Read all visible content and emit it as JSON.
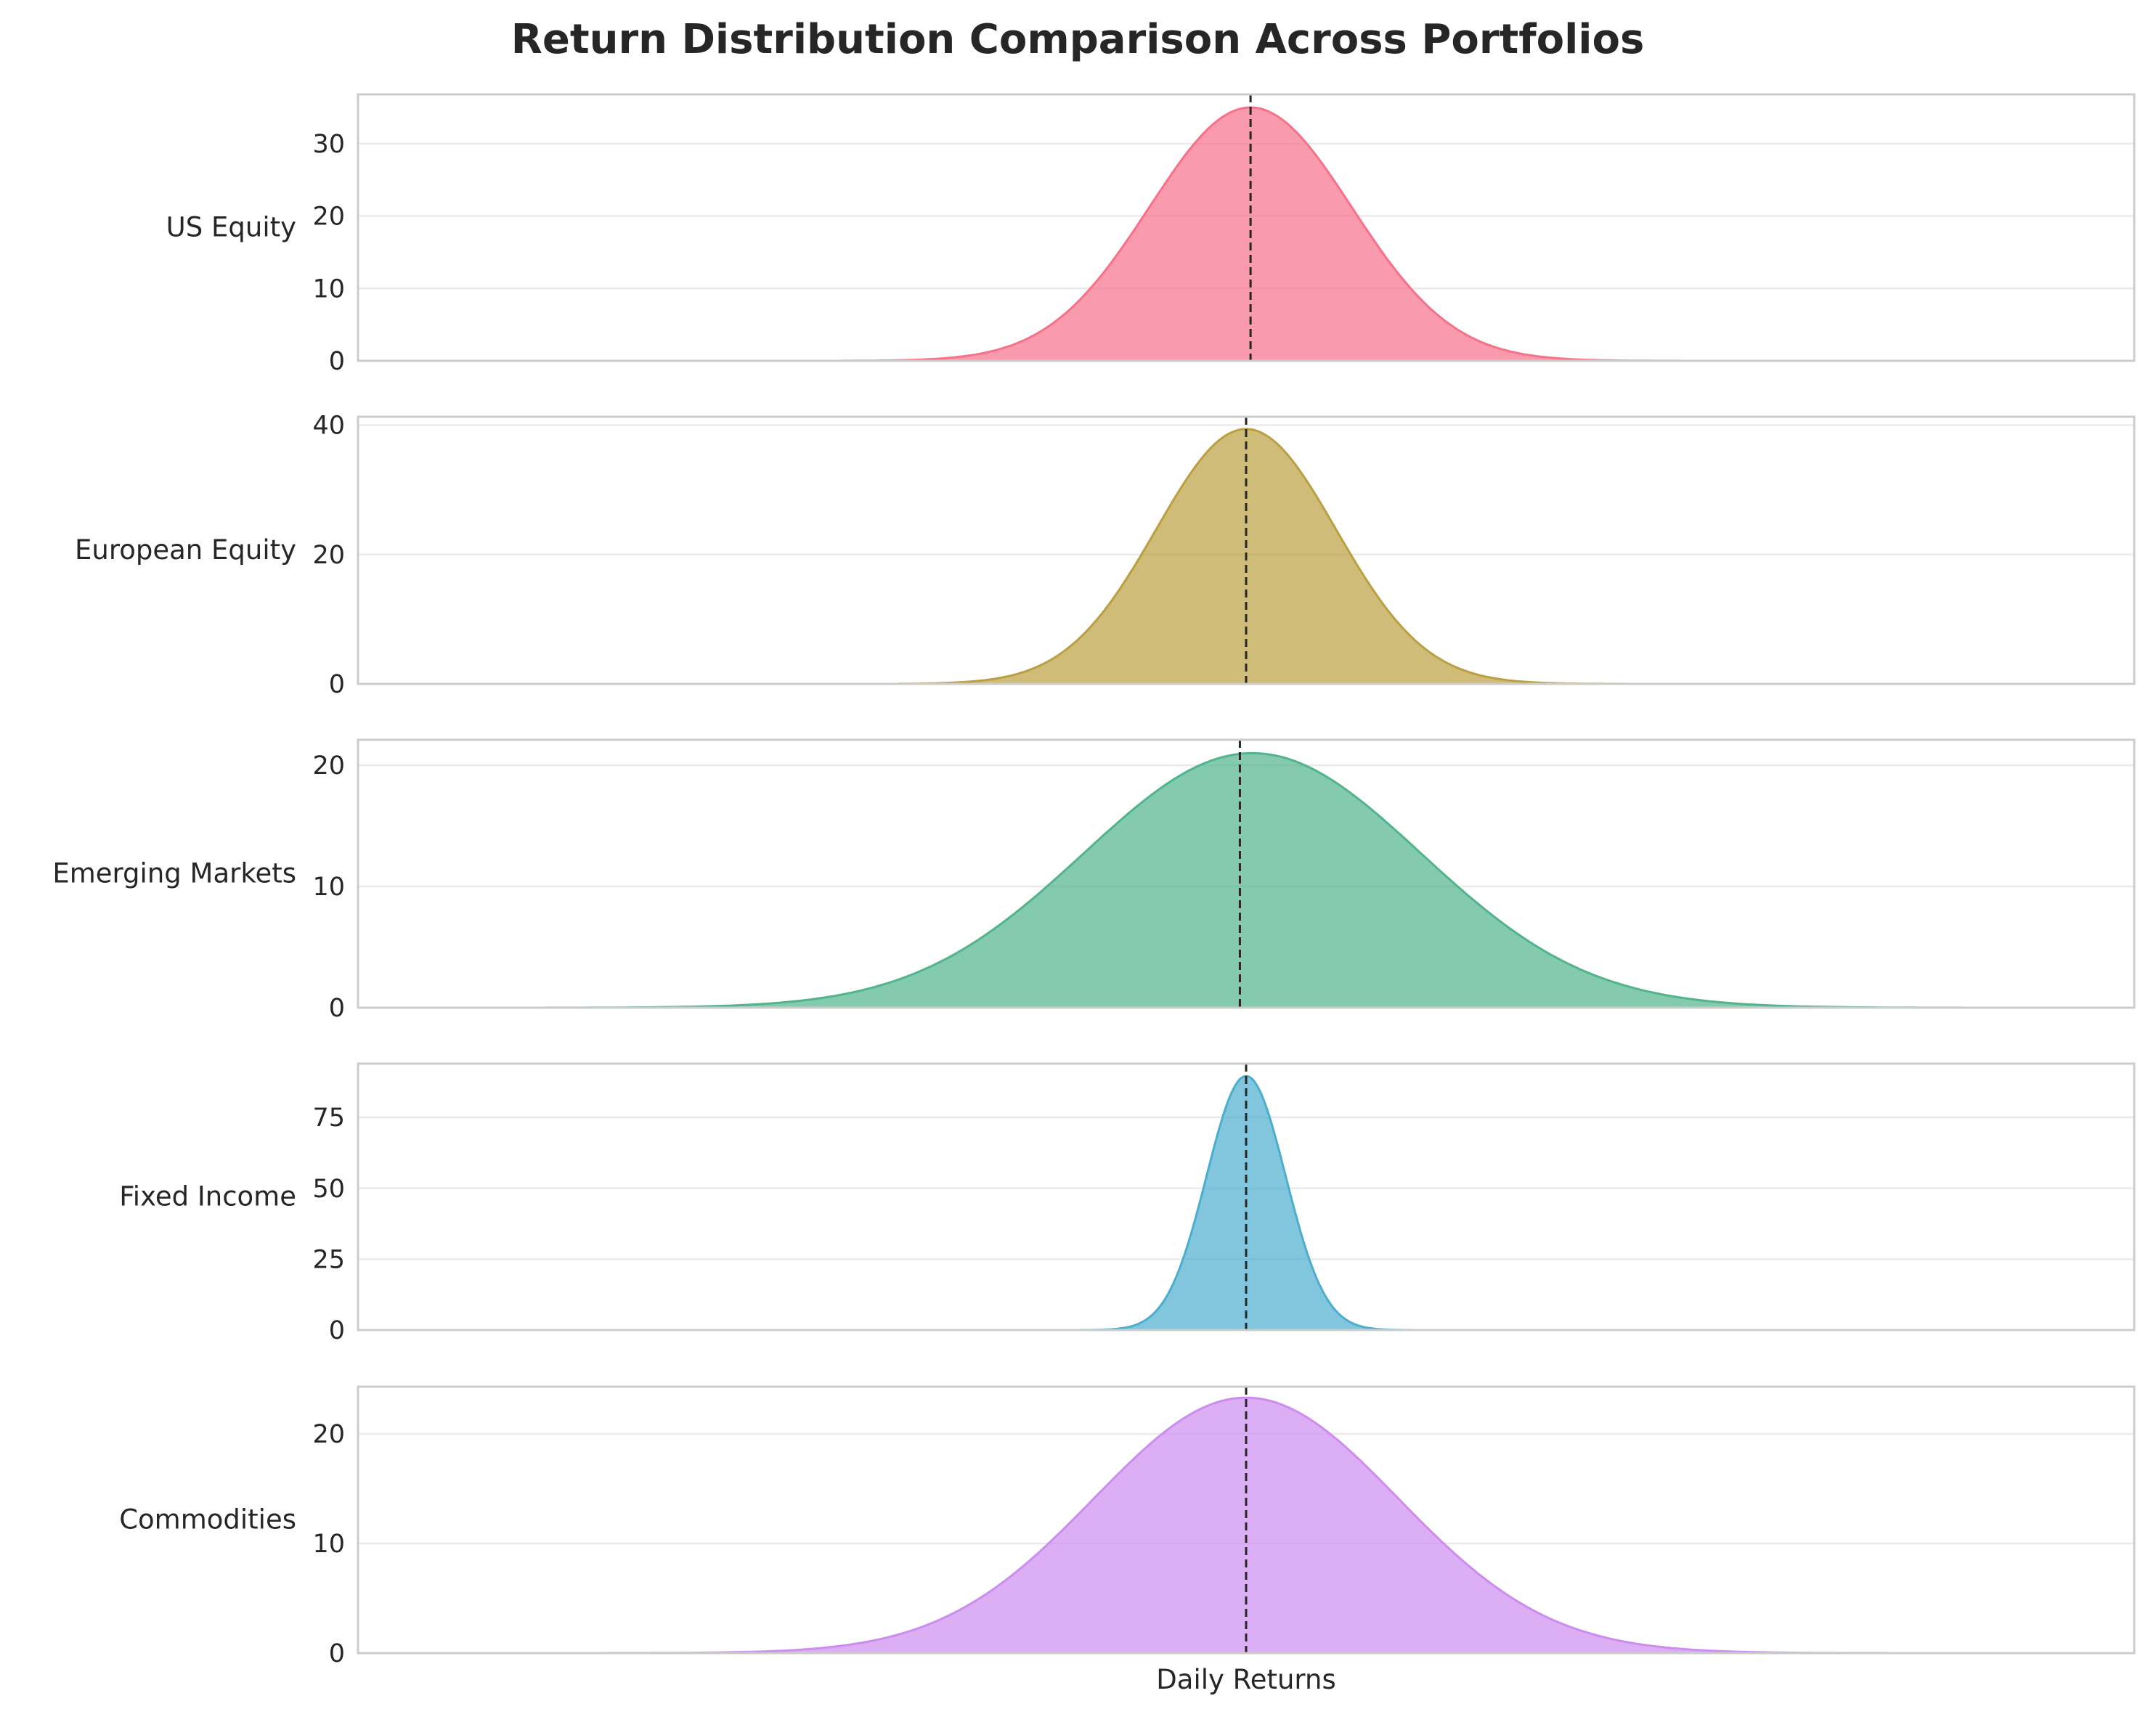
{
  "chart_data": {
    "type": "area",
    "title": "Return Distribution Comparison Across Portfolios",
    "xlabel": "Daily Returns",
    "xticks_visible": false,
    "grid": "horizontal",
    "line_color": "#262626",
    "series": [
      {
        "name": "US Equity",
        "color": "#f77189",
        "yticks": [
          0,
          10,
          20,
          30
        ],
        "ylim": [
          0,
          36.8
        ],
        "xlim": [
          -0.1,
          0.1
        ],
        "x_range": [
          -0.0456,
          0.068
        ],
        "mean": 0.0005,
        "sigma": 0.01139,
        "peak": 35.0,
        "median": 0.0005
      },
      {
        "name": "European Equity",
        "color": "#bb9f40",
        "yticks": [
          0,
          20,
          40
        ],
        "ylim": [
          0,
          41.3
        ],
        "xlim": [
          -0.1,
          0.1
        ],
        "x_range": [
          -0.0391,
          0.0553
        ],
        "mean": 0.0,
        "sigma": 0.01012,
        "peak": 39.4,
        "median": 0.0
      },
      {
        "name": "Emerging Markets",
        "color": "#50b48c",
        "yticks": [
          0,
          10,
          20
        ],
        "ylim": [
          0,
          22.1
        ],
        "xlim": [
          -0.1,
          0.1
        ],
        "x_range": [
          -0.0913,
          0.0953
        ],
        "mean": 0.0007,
        "sigma": 0.01898,
        "peak": 21.0,
        "median": -0.0007
      },
      {
        "name": "Fixed Income",
        "color": "#4caece",
        "yticks": [
          0,
          25,
          50,
          75
        ],
        "ylim": [
          0,
          94.0
        ],
        "xlim": [
          -0.1,
          0.1
        ],
        "x_range": [
          -0.0203,
          0.02
        ],
        "mean": 0.0,
        "sigma": 0.00445,
        "peak": 89.6,
        "median": 0.0
      },
      {
        "name": "Commodities",
        "color": "#cd8df0",
        "yticks": [
          0,
          10,
          20
        ],
        "ylim": [
          0,
          24.3
        ],
        "xlim": [
          -0.1,
          0.1
        ],
        "x_range": [
          -0.0748,
          0.0818
        ],
        "mean": 0.0,
        "sigma": 0.0171,
        "peak": 23.3,
        "median": 0.0
      }
    ]
  }
}
